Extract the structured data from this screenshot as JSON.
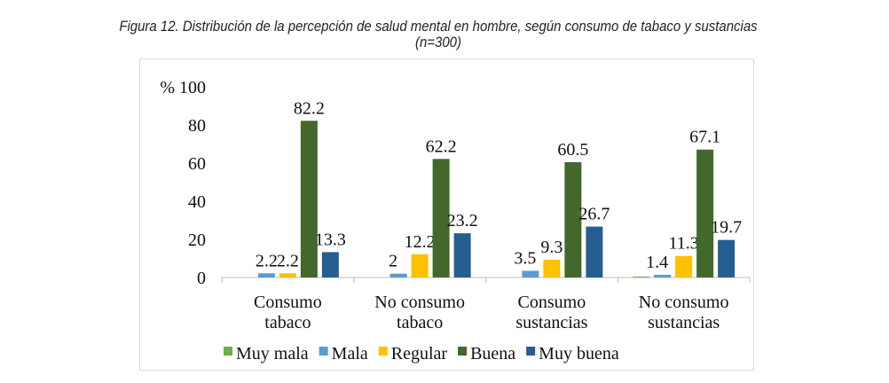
{
  "chart_data": {
    "type": "bar",
    "title": "Figura 12. Distribución de la percepción de salud mental en hombre, según consumo de tabaco y sustancias",
    "subtitle": "(n=300)",
    "ylabel": "%",
    "ylim": [
      0,
      100
    ],
    "yticks": [
      0,
      20,
      40,
      60,
      80,
      100
    ],
    "grid": false,
    "legend_position": "bottom",
    "categories": [
      [
        "Consumo",
        "tabaco"
      ],
      [
        "No consumo",
        "tabaco"
      ],
      [
        "Consumo",
        "sustancias"
      ],
      [
        "No consumo",
        "sustancias"
      ]
    ],
    "series": [
      {
        "name": "Muy mala",
        "color": "#70ad47",
        "values": [
          0,
          0,
          0,
          0.5
        ],
        "labels": [
          null,
          null,
          null,
          null
        ]
      },
      {
        "name": "Mala",
        "color": "#5b9bd5",
        "values": [
          2.2,
          2,
          3.5,
          1.4
        ],
        "labels": [
          "2.2",
          "2",
          "3.5",
          "1.4"
        ]
      },
      {
        "name": "Regular",
        "color": "#ffc000",
        "values": [
          2.2,
          12.2,
          9.3,
          11.3
        ],
        "labels": [
          "2.2",
          "12.2",
          "9.3",
          "11.3"
        ]
      },
      {
        "name": "Buena",
        "color": "#43682b",
        "values": [
          82.2,
          62.2,
          60.5,
          67.1
        ],
        "labels": [
          "82.2",
          "62.2",
          "60.5",
          "67.1"
        ]
      },
      {
        "name": "Muy buena",
        "color": "#255e91",
        "values": [
          13.3,
          23.2,
          26.7,
          19.7
        ],
        "labels": [
          "13.3",
          "23.2",
          "26.7",
          "19.7"
        ]
      }
    ]
  }
}
